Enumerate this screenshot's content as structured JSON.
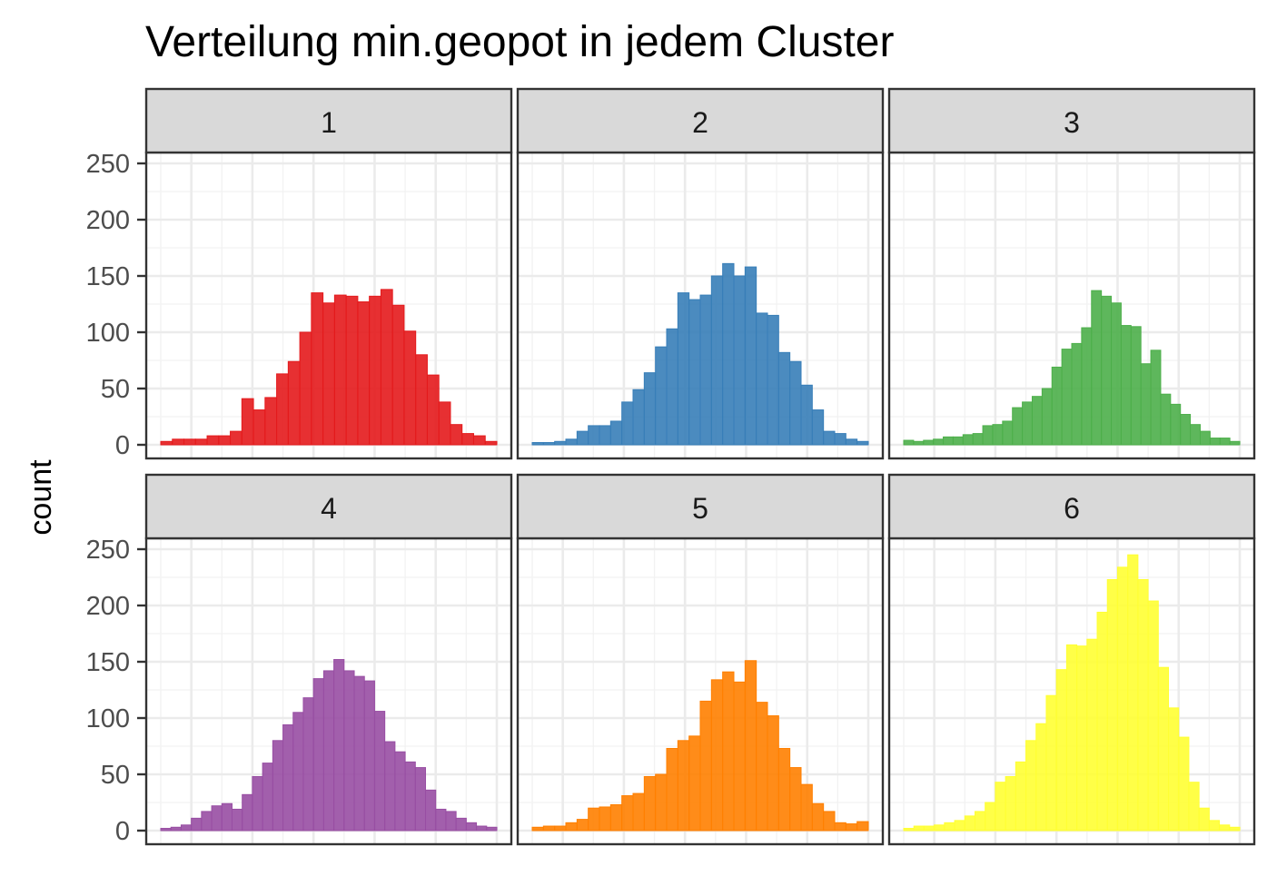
{
  "chart_data": {
    "type": "bar",
    "title": "Verteilung min.geopot in jedem Cluster",
    "xlabel": "",
    "ylabel": "count",
    "ylim": [
      0,
      260
    ],
    "y_ticks": [
      0,
      50,
      100,
      150,
      200,
      250
    ],
    "y_tick_labels": [
      "0",
      "50",
      "100",
      "150",
      "200",
      "250"
    ],
    "grid": true,
    "legend": "none",
    "layout": "facet grid 2 rows x 3 columns",
    "facets": [
      {
        "label": "1",
        "color": "#E41A1C",
        "values": [
          3,
          5,
          5,
          5,
          8,
          8,
          12,
          41,
          31,
          42,
          63,
          74,
          100,
          135,
          126,
          133,
          132,
          127,
          132,
          138,
          124,
          101,
          80,
          62,
          38,
          18,
          10,
          8,
          3
        ]
      },
      {
        "label": "2",
        "color": "#377EB8",
        "values": [
          2,
          2,
          3,
          5,
          12,
          17,
          17,
          21,
          38,
          49,
          64,
          87,
          103,
          135,
          129,
          133,
          150,
          161,
          150,
          158,
          117,
          115,
          82,
          74,
          53,
          31,
          12,
          10,
          5,
          3
        ]
      },
      {
        "label": "3",
        "color": "#4DAF4A",
        "values": [
          4,
          3,
          4,
          5,
          7,
          7,
          9,
          10,
          17,
          18,
          21,
          33,
          38,
          43,
          50,
          69,
          85,
          90,
          104,
          137,
          132,
          126,
          106,
          105,
          72,
          84,
          45,
          36,
          27,
          18,
          12,
          6,
          6,
          3
        ]
      },
      {
        "label": "4",
        "color": "#984EA3",
        "values": [
          2,
          3,
          5,
          11,
          17,
          22,
          24,
          19,
          32,
          48,
          60,
          80,
          94,
          105,
          118,
          135,
          142,
          152,
          142,
          137,
          133,
          106,
          79,
          70,
          61,
          56,
          36,
          19,
          17,
          11,
          7,
          4,
          3
        ]
      },
      {
        "label": "5",
        "color": "#FF7F00",
        "values": [
          3,
          4,
          4,
          7,
          10,
          20,
          21,
          23,
          31,
          33,
          48,
          50,
          73,
          80,
          84,
          115,
          134,
          141,
          132,
          151,
          114,
          102,
          73,
          56,
          41,
          24,
          17,
          7,
          6,
          8
        ]
      },
      {
        "label": "6",
        "color": "#FFFF33",
        "values": [
          2,
          4,
          4,
          5,
          7,
          9,
          13,
          17,
          25,
          43,
          48,
          61,
          80,
          95,
          120,
          143,
          165,
          164,
          170,
          194,
          223,
          234,
          245,
          223,
          204,
          145,
          109,
          83,
          43,
          20,
          9,
          5,
          3
        ]
      }
    ]
  }
}
